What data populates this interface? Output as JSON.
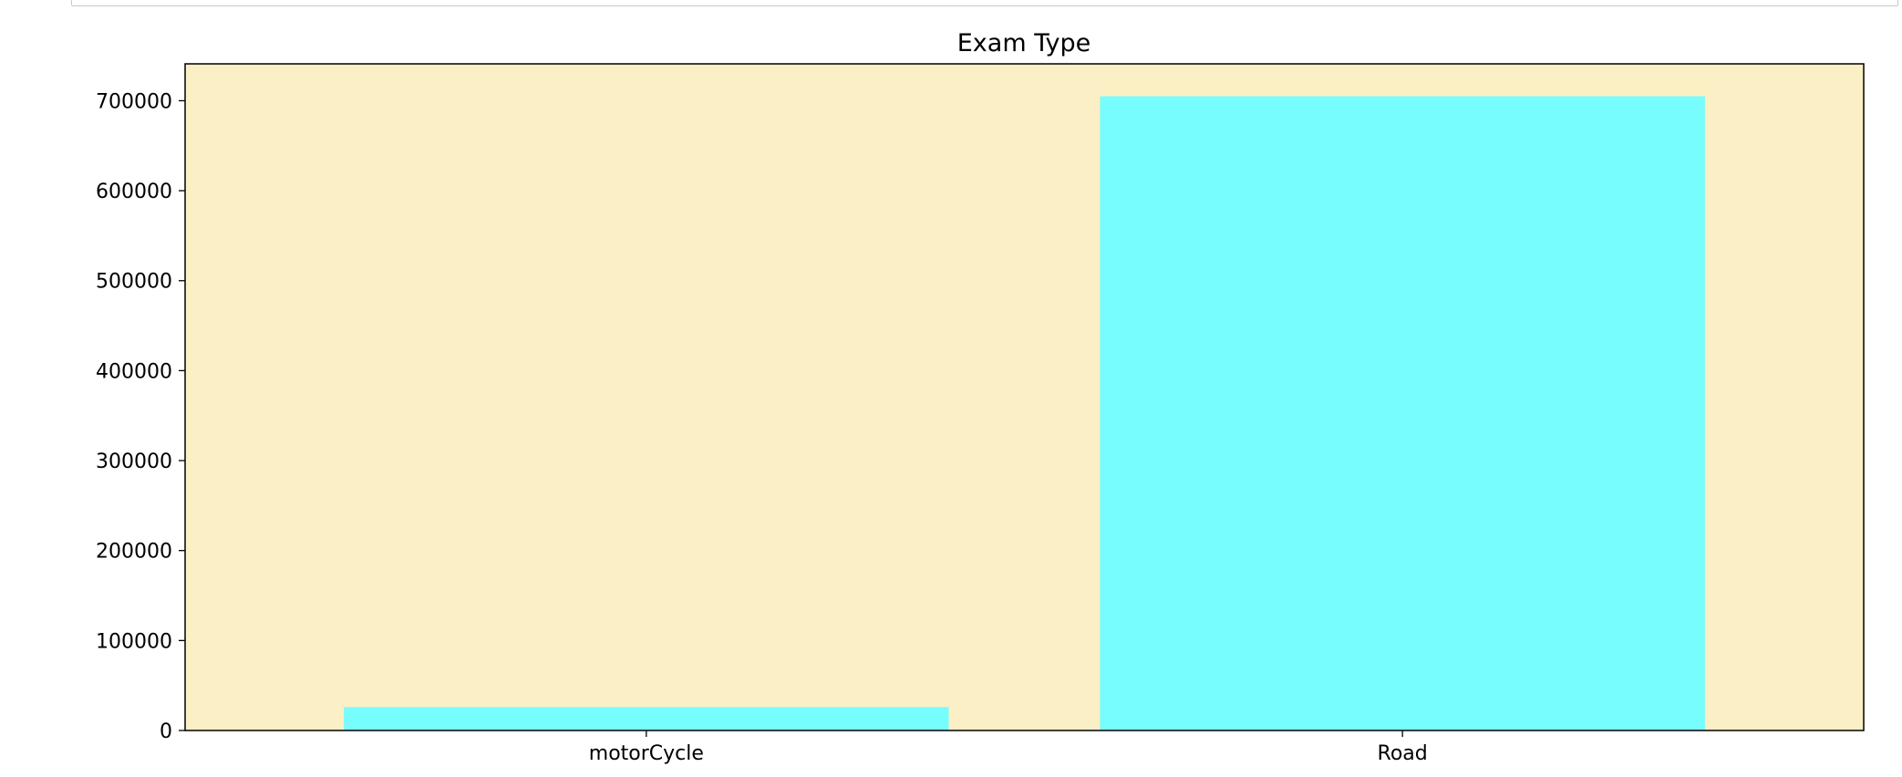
{
  "chart_data": {
    "type": "bar",
    "title": "Exam Type",
    "xlabel": "",
    "ylabel": "",
    "categories": [
      "motorCycle",
      "Road"
    ],
    "values": [
      26000,
      705000
    ],
    "ylim": [
      0,
      741000
    ],
    "yticks": [
      0,
      100000,
      200000,
      300000,
      400000,
      500000,
      600000,
      700000
    ],
    "ytick_labels": [
      "0",
      "100000",
      "200000",
      "300000",
      "400000",
      "500000",
      "600000",
      "700000"
    ],
    "bar_color": "#77fdfd",
    "plot_background": "#fbefc5",
    "grid": false,
    "legend": "none"
  }
}
